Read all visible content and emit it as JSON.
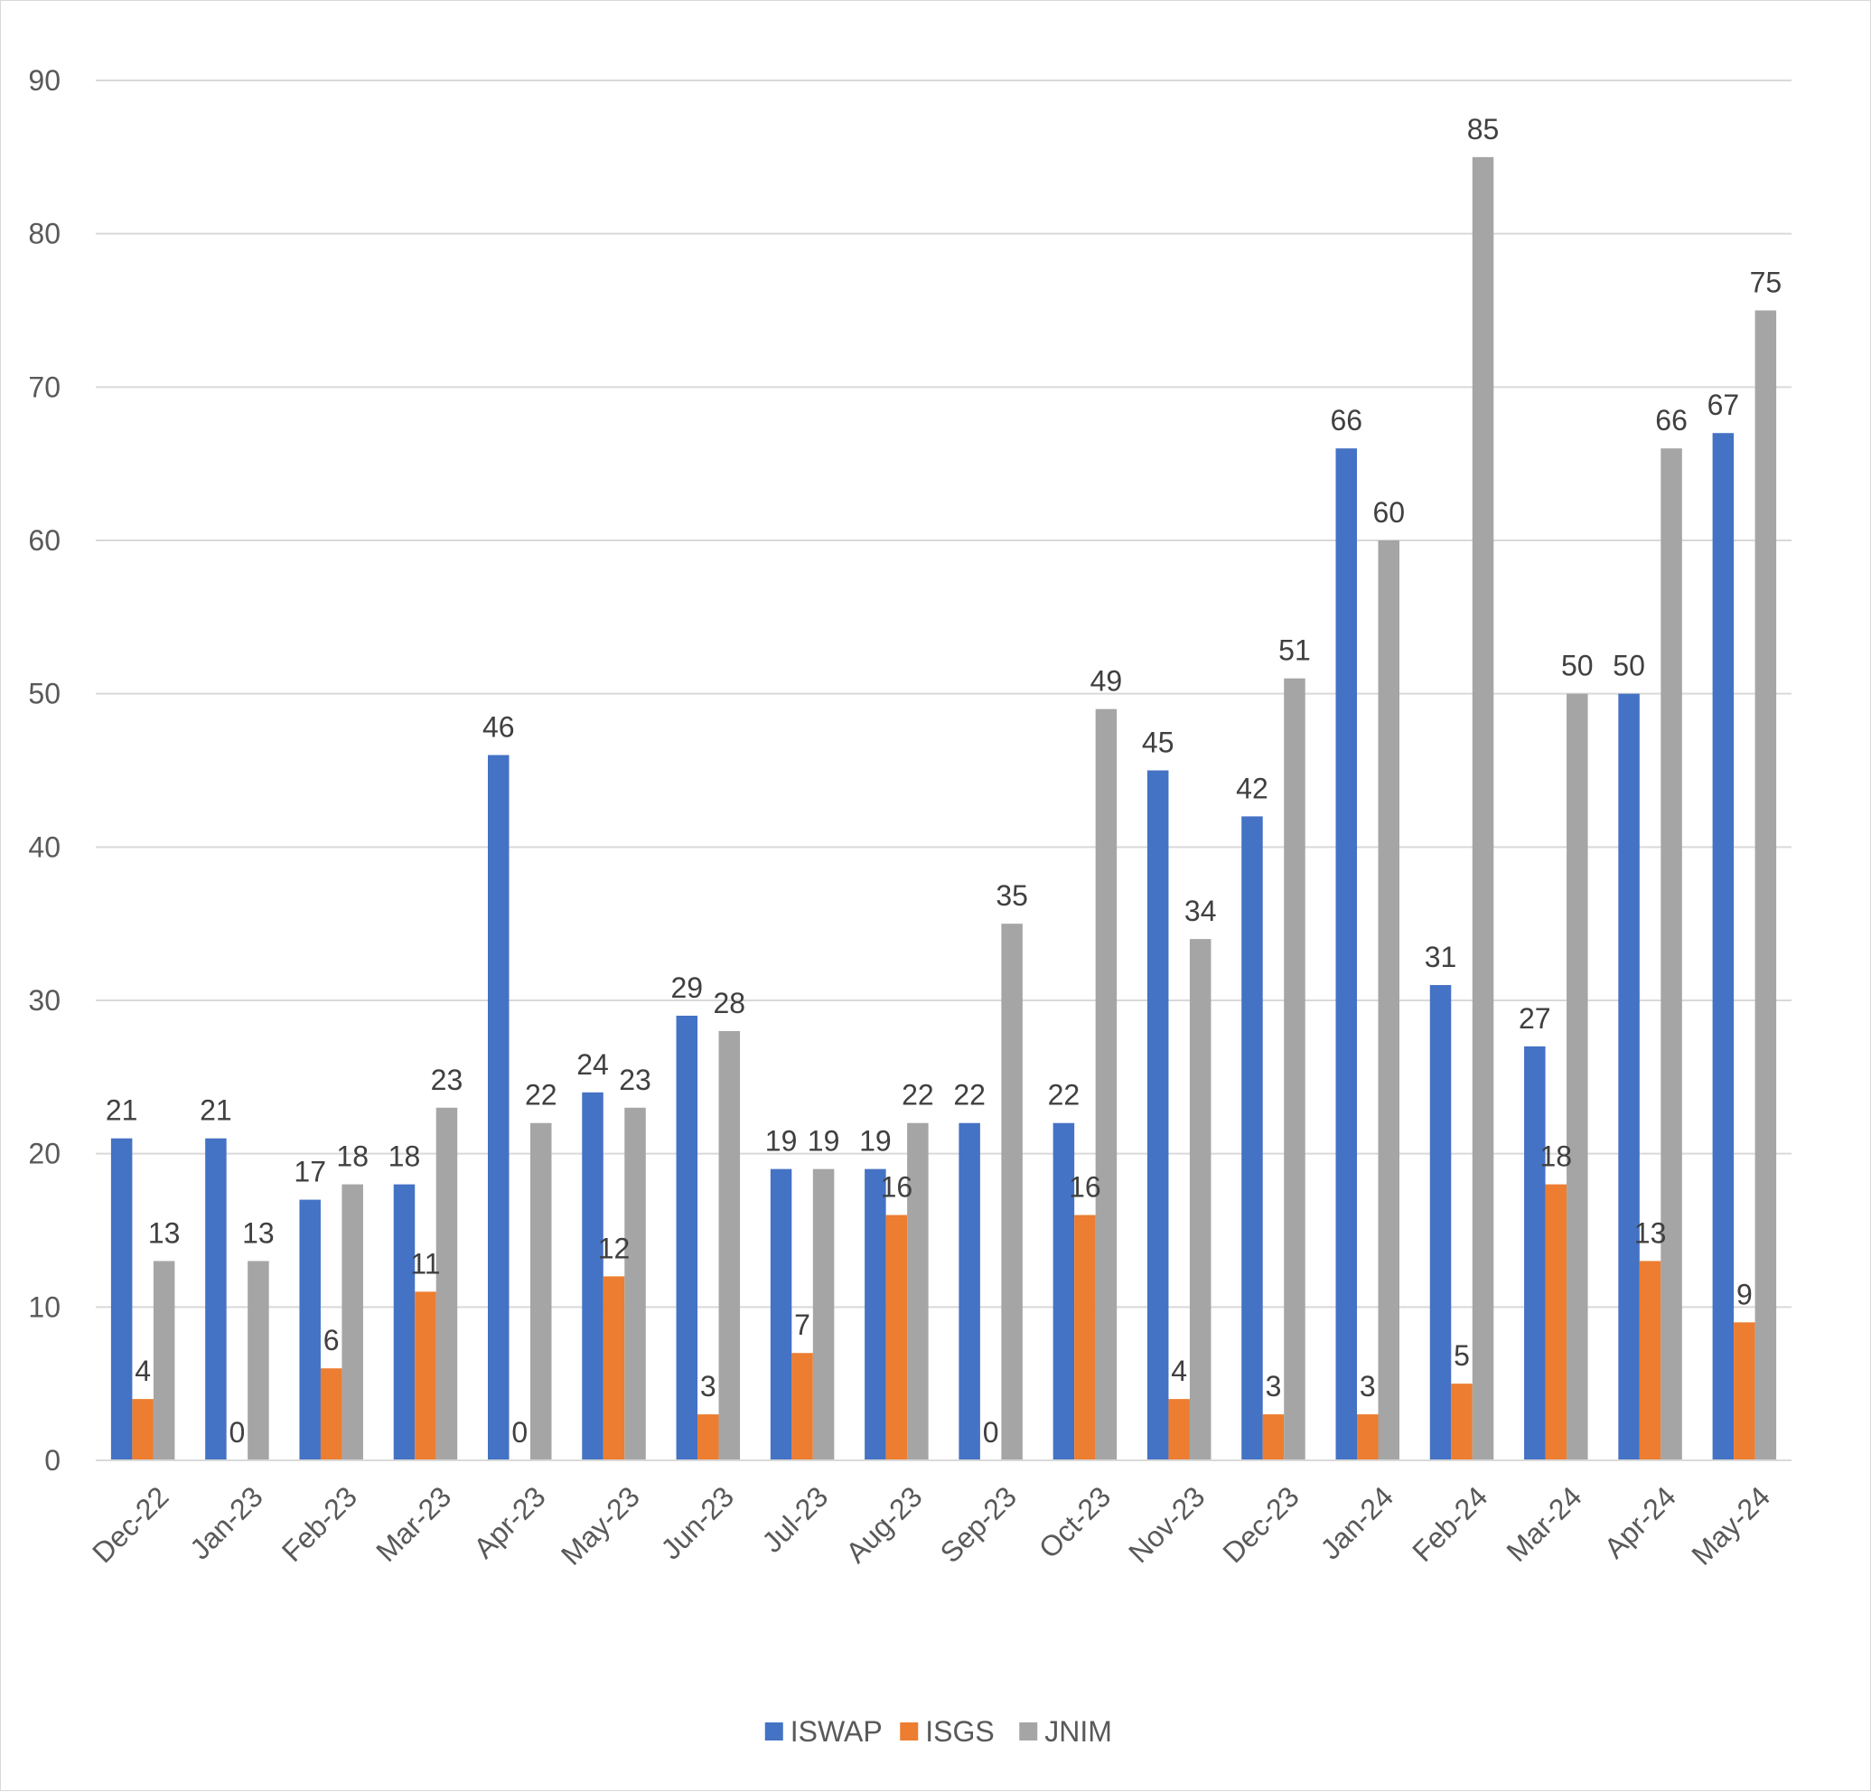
{
  "chart_data": {
    "type": "bar",
    "title": "",
    "xlabel": "",
    "ylabel": "",
    "ylim": [
      0,
      90
    ],
    "yticks": [
      0,
      10,
      20,
      30,
      40,
      50,
      60,
      70,
      80,
      90
    ],
    "grid": true,
    "legend_position": "bottom",
    "data_labels": true,
    "categories": [
      "Dec-22",
      "Jan-23",
      "Feb-23",
      "Mar-23",
      "Apr-23",
      "May-23",
      "Jun-23",
      "Jul-23",
      "Aug-23",
      "Sep-23",
      "Oct-23",
      "Nov-23",
      "Dec-23",
      "Jan-24",
      "Feb-24",
      "Mar-24",
      "Apr-24",
      "May-24"
    ],
    "series": [
      {
        "name": "ISWAP",
        "color": "#4472C4",
        "values": [
          21,
          21,
          17,
          18,
          46,
          24,
          29,
          19,
          19,
          22,
          22,
          45,
          42,
          66,
          31,
          27,
          50,
          67
        ]
      },
      {
        "name": "ISGS",
        "color": "#ED7D31",
        "values": [
          4,
          0,
          6,
          11,
          0,
          12,
          3,
          7,
          16,
          0,
          16,
          4,
          3,
          3,
          5,
          18,
          13,
          9
        ]
      },
      {
        "name": "JNIM",
        "color": "#A5A5A5",
        "values": [
          13,
          13,
          18,
          23,
          22,
          23,
          28,
          19,
          22,
          35,
          49,
          34,
          51,
          60,
          85,
          50,
          66,
          75
        ]
      }
    ]
  }
}
